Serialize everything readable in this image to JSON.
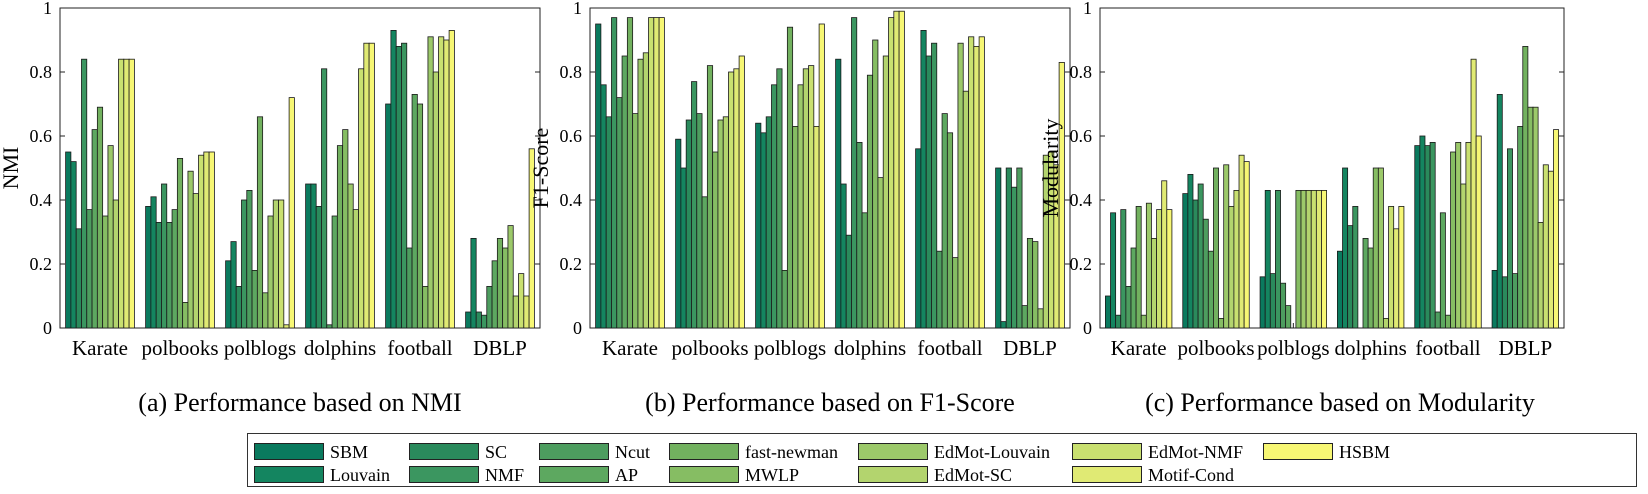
{
  "chart_data": [
    {
      "type": "bar",
      "title": "(a) Performance based on NMI",
      "ylabel": "NMI",
      "ylim": [
        0,
        1
      ],
      "yticks": [
        "0",
        "0.2",
        "0.4",
        "0.6",
        "0.8",
        "1"
      ],
      "categories": [
        "Karate",
        "polbooks",
        "polblogs",
        "dolphins",
        "football",
        "DBLP"
      ],
      "values": [
        [
          0.55,
          0.52,
          0.31,
          0.84,
          0.37,
          0.62,
          0.69,
          0.35,
          0.57,
          0.4,
          0.84,
          0.84,
          0.84
        ],
        [
          0.38,
          0.41,
          0.33,
          0.45,
          0.33,
          0.37,
          0.53,
          0.08,
          0.49,
          0.42,
          0.54,
          0.55,
          0.55
        ],
        [
          0.21,
          0.27,
          0.13,
          0.4,
          0.43,
          0.18,
          0.66,
          0.11,
          0.35,
          0.4,
          0.4,
          0.01,
          0.72
        ],
        [
          0.45,
          0.45,
          0.38,
          0.81,
          0.01,
          0.35,
          0.57,
          0.62,
          0.45,
          0.37,
          0.81,
          0.89,
          0.89
        ],
        [
          0.7,
          0.93,
          0.88,
          0.89,
          0.25,
          0.73,
          0.7,
          0.13,
          0.91,
          0.8,
          0.91,
          0.9,
          0.93
        ],
        [
          0.05,
          0.28,
          0.05,
          0.04,
          0.13,
          0.21,
          0.28,
          0.25,
          0.32,
          0.1,
          0.17,
          0.1,
          0.56
        ]
      ]
    },
    {
      "type": "bar",
      "title": "(b) Performance based on F1-Score",
      "ylabel": "F1-Score",
      "ylim": [
        0,
        1
      ],
      "yticks": [
        "0",
        "0.2",
        "0.4",
        "0.6",
        "0.8",
        "1"
      ],
      "categories": [
        "Karate",
        "polbooks",
        "polblogs",
        "dolphins",
        "football",
        "DBLP"
      ],
      "values": [
        [
          0.95,
          0.76,
          0.66,
          0.97,
          0.72,
          0.85,
          0.97,
          0.67,
          0.84,
          0.86,
          0.97,
          0.97,
          0.97
        ],
        [
          0.59,
          0.5,
          0.65,
          0.77,
          0.67,
          0.41,
          0.82,
          0.55,
          0.65,
          0.66,
          0.8,
          0.81,
          0.85
        ],
        [
          0.64,
          0.61,
          0.66,
          0.76,
          0.81,
          0.18,
          0.94,
          0.63,
          0.76,
          0.81,
          0.82,
          0.63,
          0.95
        ],
        [
          0.84,
          0.45,
          0.29,
          0.97,
          0.58,
          0.36,
          0.79,
          0.9,
          0.47,
          0.85,
          0.97,
          0.99,
          0.99
        ],
        [
          0.56,
          0.93,
          0.85,
          0.89,
          0.24,
          0.67,
          0.61,
          0.22,
          0.89,
          0.74,
          0.91,
          0.88,
          0.91
        ],
        [
          0.5,
          0.02,
          0.5,
          0.44,
          0.5,
          0.07,
          0.28,
          0.27,
          0.06,
          0.54,
          0.55,
          0.51,
          0.83
        ]
      ]
    },
    {
      "type": "bar",
      "title": "(c) Performance based on Modularity",
      "ylabel": "Modularity",
      "ylim": [
        0,
        1
      ],
      "yticks": [
        "0",
        "0.2",
        "0.4",
        "0.6",
        "0.8",
        "1"
      ],
      "categories": [
        "Karate",
        "polbooks",
        "polblogs",
        "dolphins",
        "football",
        "DBLP"
      ],
      "values": [
        [
          0.1,
          0.36,
          0.04,
          0.37,
          0.13,
          0.25,
          0.38,
          0.04,
          0.39,
          0.28,
          0.37,
          0.46,
          0.37
        ],
        [
          0.42,
          0.48,
          0.4,
          0.45,
          0.34,
          0.24,
          0.5,
          0.03,
          0.51,
          0.38,
          0.43,
          0.54,
          0.52
        ],
        [
          0.16,
          0.43,
          0.17,
          0.43,
          0.14,
          0.07,
          0.0,
          0.43,
          0.43,
          0.43,
          0.43,
          0.43,
          0.43
        ],
        [
          0.24,
          0.5,
          0.32,
          0.38,
          0.0,
          0.28,
          0.25,
          0.5,
          0.5,
          0.03,
          0.38,
          0.31,
          0.38
        ],
        [
          0.57,
          0.6,
          0.57,
          0.58,
          0.05,
          0.36,
          0.04,
          0.55,
          0.58,
          0.45,
          0.58,
          0.84,
          0.6
        ],
        [
          0.18,
          0.73,
          0.16,
          0.56,
          0.17,
          0.63,
          0.88,
          0.69,
          0.69,
          0.33,
          0.51,
          0.49,
          0.62
        ]
      ]
    }
  ],
  "legend": {
    "items": [
      {
        "name": "SBM",
        "color": "#0a7a5e"
      },
      {
        "name": "Louvain",
        "color": "#148560"
      },
      {
        "name": "SC",
        "color": "#2a8a5c"
      },
      {
        "name": "NMF",
        "color": "#3b9660"
      },
      {
        "name": "Ncut",
        "color": "#4d9d5f"
      },
      {
        "name": "AP",
        "color": "#5da860"
      },
      {
        "name": "fast-newman",
        "color": "#72b15f"
      },
      {
        "name": "MWLP",
        "color": "#86bd63"
      },
      {
        "name": "EdMot-Louvain",
        "color": "#9cc96a"
      },
      {
        "name": "EdMot-SC",
        "color": "#b3d46e"
      },
      {
        "name": "EdMot-NMF",
        "color": "#c9e070"
      },
      {
        "name": "Motif-Cond",
        "color": "#e0ea74"
      },
      {
        "name": "HSBM",
        "color": "#f7f774"
      }
    ]
  }
}
